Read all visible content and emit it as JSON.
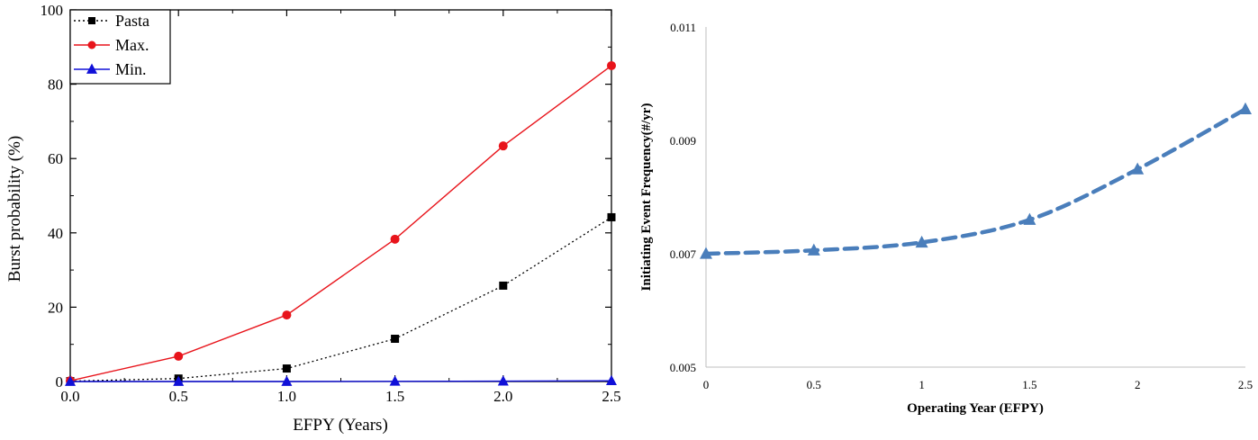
{
  "chart_data": [
    {
      "type": "line",
      "x": [
        0.0,
        0.5,
        1.0,
        1.5,
        2.0,
        2.5
      ],
      "series": [
        {
          "name": "Pasta",
          "values": [
            0.1,
            0.8,
            3.5,
            11.5,
            25.8,
            44.2
          ],
          "color": "#000000",
          "marker": "square",
          "line": "dotted"
        },
        {
          "name": "Max.",
          "values": [
            0.2,
            6.8,
            17.9,
            38.3,
            63.4,
            85.0
          ],
          "color": "#e8141b",
          "marker": "circle",
          "line": "solid"
        },
        {
          "name": "Min.",
          "values": [
            0.0,
            0.0,
            0.0,
            0.05,
            0.1,
            0.2
          ],
          "color": "#1010d8",
          "marker": "triangle",
          "line": "solid"
        }
      ],
      "xlabel": "EFPY (Years)",
      "ylabel": "Burst probability (%)",
      "xlim": [
        0.0,
        2.5
      ],
      "ylim": [
        0,
        100
      ],
      "xticks": [
        "0.0",
        "0.5",
        "1.0",
        "1.5",
        "2.0",
        "2.5"
      ],
      "yticks": [
        "0",
        "20",
        "40",
        "60",
        "80",
        "100"
      ],
      "legend": "top-left",
      "grid": false
    },
    {
      "type": "line",
      "x": [
        0,
        0.5,
        1,
        1.5,
        2,
        2.5
      ],
      "series": [
        {
          "values": [
            0.007,
            0.00706,
            0.0072,
            0.0076,
            0.00849,
            0.00955
          ],
          "color": "#4a7ebb",
          "marker": "triangle",
          "line": "dashed"
        }
      ],
      "xlabel": "Operating Year (EFPY)",
      "ylabel": "Initiating Event Frequency(#/yr)",
      "xlim": [
        0,
        2.5
      ],
      "ylim": [
        0.005,
        0.011
      ],
      "xticks": [
        "0",
        "0.5",
        "1",
        "1.5",
        "2",
        "2.5"
      ],
      "yticks": [
        "0.005",
        "0.007",
        "0.009",
        "0.011"
      ],
      "grid": false
    }
  ]
}
